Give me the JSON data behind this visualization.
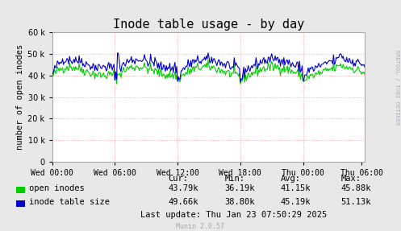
{
  "title": "Inode table usage - by day",
  "ylabel": "number of open inodes",
  "bg_color": "#e8e8e8",
  "plot_bg_color": "#ffffff",
  "grid_color": "#ff9999",
  "x_ticks_labels": [
    "Wed 00:00",
    "Wed 06:00",
    "Wed 12:00",
    "Wed 18:00",
    "Thu 00:00",
    "Thu 06:00"
  ],
  "ylim": [
    0,
    60000
  ],
  "yticks": [
    0,
    10000,
    20000,
    30000,
    40000,
    50000,
    60000
  ],
  "legend_entries": [
    "open inodes",
    "inode table size"
  ],
  "legend_colors": [
    "#00cc00",
    "#0000cc"
  ],
  "cur_label": "Cur:",
  "min_label": "Min:",
  "avg_label": "Avg:",
  "max_label": "Max:",
  "open_inodes_stats": {
    "cur": "43.79k",
    "min": "36.19k",
    "avg": "41.15k",
    "max": "45.88k"
  },
  "inode_table_stats": {
    "cur": "49.66k",
    "min": "38.80k",
    "avg": "45.19k",
    "max": "51.13k"
  },
  "last_update": "Last update: Thu Jan 23 07:50:29 2025",
  "munin_version": "Munin 2.0.57",
  "watermark": "RRDTOOL / TOBI OETIKER",
  "title_fontsize": 11,
  "axis_fontsize": 7.5,
  "tick_fontsize": 7,
  "stats_fontsize": 7.5
}
